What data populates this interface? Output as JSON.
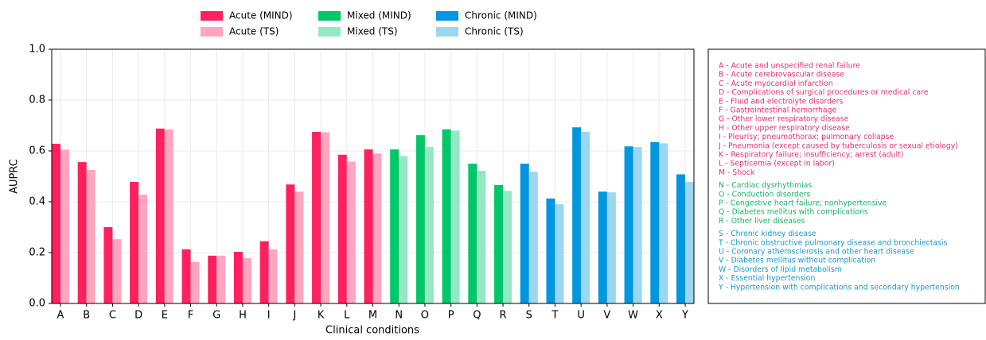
{
  "chart_data": {
    "type": "bar",
    "x_label": "Clinical conditions",
    "y_label": "AUPRC",
    "categories": [
      "A",
      "B",
      "C",
      "D",
      "E",
      "F",
      "G",
      "H",
      "I",
      "J",
      "K",
      "L",
      "M",
      "N",
      "O",
      "P",
      "Q",
      "R",
      "S",
      "T",
      "U",
      "V",
      "W",
      "X",
      "Y"
    ],
    "series": [
      {
        "name": "Acute (MIND)",
        "color": "#ff2060",
        "values": [
          0.628,
          0.556,
          0.3,
          0.478,
          0.688,
          0.213,
          0.188,
          0.203,
          0.245,
          0.468,
          0.675,
          0.585,
          0.606,
          null,
          null,
          null,
          null,
          null,
          null,
          null,
          null,
          null,
          null,
          null,
          null
        ]
      },
      {
        "name": "Acute (TS)",
        "color": "#ffa6be",
        "values": [
          0.605,
          0.525,
          0.253,
          0.428,
          0.685,
          0.163,
          0.188,
          0.178,
          0.213,
          0.44,
          0.673,
          0.558,
          0.59,
          null,
          null,
          null,
          null,
          null,
          null,
          null,
          null,
          null,
          null,
          null,
          null
        ]
      },
      {
        "name": "Mixed (MIND)",
        "color": "#00c86a",
        "values": [
          null,
          null,
          null,
          null,
          null,
          null,
          null,
          null,
          null,
          null,
          null,
          null,
          null,
          0.606,
          0.662,
          0.685,
          0.55,
          0.466,
          null,
          null,
          null,
          null,
          null,
          null,
          null
        ]
      },
      {
        "name": "Mixed (TS)",
        "color": "#94e8c4",
        "values": [
          null,
          null,
          null,
          null,
          null,
          null,
          null,
          null,
          null,
          null,
          null,
          null,
          null,
          0.58,
          0.615,
          0.68,
          0.522,
          0.443,
          null,
          null,
          null,
          null,
          null,
          null,
          null
        ]
      },
      {
        "name": "Chronic (MIND)",
        "color": "#0096e0",
        "values": [
          null,
          null,
          null,
          null,
          null,
          null,
          null,
          null,
          null,
          null,
          null,
          null,
          null,
          null,
          null,
          null,
          null,
          null,
          0.55,
          0.413,
          0.693,
          0.44,
          0.618,
          0.635,
          0.508
        ]
      },
      {
        "name": "Chronic (TS)",
        "color": "#9cd6f0",
        "values": [
          null,
          null,
          null,
          null,
          null,
          null,
          null,
          null,
          null,
          null,
          null,
          null,
          null,
          null,
          null,
          null,
          null,
          null,
          0.518,
          0.39,
          0.675,
          0.437,
          0.615,
          0.63,
          0.478
        ]
      }
    ],
    "ylim": [
      0,
      1
    ],
    "yticks": [
      {
        "value": 0,
        "label": "0.0"
      },
      {
        "value": 0.2,
        "label": "0.2"
      },
      {
        "value": 0.4,
        "label": "0.4"
      },
      {
        "value": 0.6,
        "label": "0.6"
      },
      {
        "value": 0.8,
        "label": "0.8"
      },
      {
        "value": 1,
        "label": "1.0"
      }
    ],
    "grid": true,
    "legend": "top",
    "condition_key": [
      {
        "color": "#e8306a",
        "items": [
          "A - Acute and unspecified renal failure",
          "B - Acute cerebrovascular disease",
          "C - Acute myocardial infarction",
          "D - Complications of surgical procedures or medical care",
          "E - Fluid and electrolyte disorders",
          "F - Gastrointestinal hemorrhage",
          "G - Other lower respiratory disease",
          "H - Other upper respiratory disease",
          "I - Pleurisy; pneumothorax; pulmonary collapse",
          "J - Pneumonia (except caused by tuberculosis or sexual etiology)",
          "K - Respiratory failure; insufficiency; arrest (adult)",
          "L - Septicemia (except in labor)",
          "M - Shock"
        ]
      },
      {
        "color": "#1ab566",
        "items": [
          "N - Cardiac dysrhythmias",
          "O - Conduction disorders",
          "P - Congestive heart failure; nonhypertensive",
          "Q - Diabetes mellitus with complications",
          "R - Other liver diseases"
        ]
      },
      {
        "color": "#1a9acb",
        "items": [
          "S - Chronic kidney disease",
          "T - Chronic obstructive pulmonary disease and bronchiectasis",
          "U - Coronary atherosclerosis and other heart disease",
          "V - Diabetes mellitus without complication",
          "W - Disorders of lipid metabolism",
          "X - Essential hypertension",
          "Y - Hypertension with complications and secondary hypertension"
        ]
      }
    ]
  }
}
